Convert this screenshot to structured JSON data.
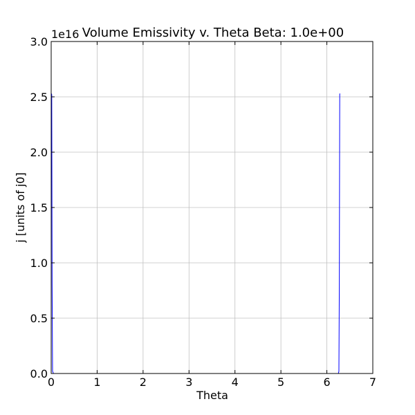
{
  "chart_data": {
    "type": "line",
    "title": "Volume Emissivity v. Theta Beta: 1.0e+00",
    "xlabel": "Theta",
    "ylabel": "j [units of j0]",
    "y_offset_label": "1e16",
    "xlim": [
      0,
      7
    ],
    "ylim": [
      0,
      3.0
    ],
    "xticks": [
      "0",
      "1",
      "2",
      "3",
      "4",
      "5",
      "6",
      "7"
    ],
    "yticks": [
      "0.0",
      "0.5",
      "1.0",
      "1.5",
      "2.0",
      "2.5",
      "3.0"
    ],
    "grid": true,
    "series": [
      {
        "color": "#0000ff",
        "x": [
          0.0,
          0.003,
          0.012,
          0.02,
          0.03,
          0.05,
          0.1,
          0.5,
          1.0,
          2.0,
          3.0,
          4.0,
          5.0,
          6.0,
          6.2,
          6.25,
          6.262,
          6.2712,
          6.2802,
          6.2832
        ],
        "y": [
          2.53,
          2.53,
          2.52,
          0.8,
          0.02,
          0.0,
          0.0,
          0.0,
          0.0,
          0.0,
          0.0,
          0.0,
          0.0,
          0.0,
          0.0,
          0.0,
          0.02,
          0.8,
          2.52,
          2.53
        ]
      }
    ]
  }
}
